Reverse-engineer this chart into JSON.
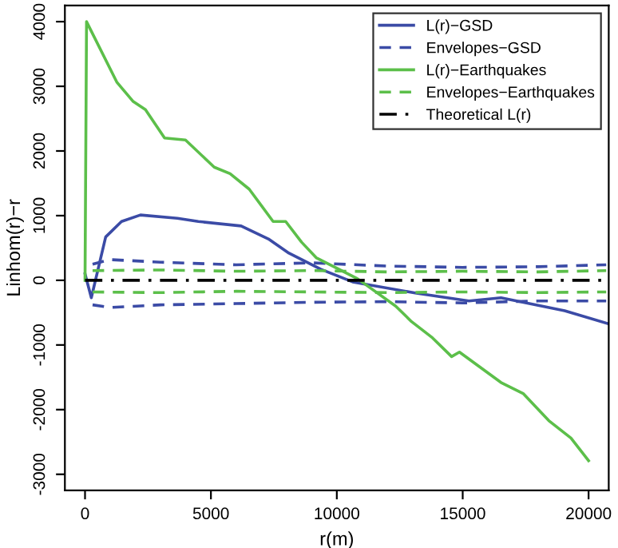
{
  "chart_data": {
    "type": "line",
    "xlabel": "r(m)",
    "ylabel": "Linhom(r)−r",
    "xlim": [
      -800,
      20800
    ],
    "ylim": [
      -3250,
      4250
    ],
    "xticks": [
      0,
      5000,
      10000,
      15000,
      20000
    ],
    "yticks": [
      -3000,
      -2000,
      -1000,
      0,
      1000,
      2000,
      3000,
      4000
    ],
    "grid": false,
    "legend": "top right",
    "series": [
      {
        "name": "L(r)−GSD",
        "color": "#3b4ba6",
        "line_style": "solid",
        "x": [
          0,
          250,
          820,
          1450,
          2200,
          3670,
          4500,
          6200,
          7280,
          8100,
          9370,
          10630,
          13160,
          15250,
          16520,
          19050,
          20760
        ],
        "values": [
          100,
          -270,
          670,
          910,
          1010,
          960,
          910,
          840,
          640,
          420,
          170,
          -25,
          -200,
          -320,
          -270,
          -470,
          -670
        ]
      },
      {
        "name": "Envelopes−GSD",
        "color": "#3b4ba6",
        "line_style": "dashed",
        "x": [
          300,
          1000,
          3000,
          6000,
          9000,
          12000,
          15000,
          18000,
          20700
        ],
        "values": [
          250,
          320,
          280,
          240,
          270,
          220,
          200,
          210,
          240
        ]
      },
      {
        "color": "#3b4ba6",
        "line_style": "dashed",
        "x": [
          300,
          1000,
          3000,
          6000,
          9000,
          12000,
          15000,
          18000,
          20700
        ],
        "values": [
          -380,
          -420,
          -380,
          -360,
          -340,
          -330,
          -350,
          -320,
          -320
        ]
      },
      {
        "name": "L(r)−Earthquakes",
        "color": "#5cbf4a",
        "line_style": "solid",
        "x": [
          0,
          60,
          1270,
          1900,
          2400,
          3160,
          3990,
          5130,
          5760,
          6520,
          7470,
          7970,
          8600,
          9180,
          10820,
          12340,
          12970,
          13800,
          14560,
          14870,
          16520,
          17400,
          18420,
          19300,
          20000
        ],
        "values": [
          0,
          4000,
          3060,
          2770,
          2640,
          2200,
          2170,
          1750,
          1650,
          1410,
          910,
          910,
          590,
          350,
          25,
          -400,
          -640,
          -890,
          -1180,
          -1110,
          -1580,
          -1750,
          -2170,
          -2440,
          -2790
        ]
      },
      {
        "name": "Envelopes−Earthquakes",
        "color": "#5cbf4a",
        "line_style": "dashed",
        "x": [
          300,
          3000,
          6000,
          9000,
          12000,
          15000,
          18000,
          20700
        ],
        "values": [
          150,
          160,
          140,
          150,
          130,
          140,
          130,
          150
        ]
      },
      {
        "color": "#5cbf4a",
        "line_style": "dashed",
        "x": [
          300,
          3000,
          6000,
          9000,
          12000,
          15000,
          18000,
          20700
        ],
        "values": [
          -180,
          -190,
          -170,
          -180,
          -190,
          -180,
          -190,
          -180
        ]
      },
      {
        "name": "Theoretical L(r)",
        "color": "#000000",
        "line_style": "dashdot",
        "x": [
          0,
          20800
        ],
        "values": [
          0,
          0
        ]
      }
    ]
  }
}
